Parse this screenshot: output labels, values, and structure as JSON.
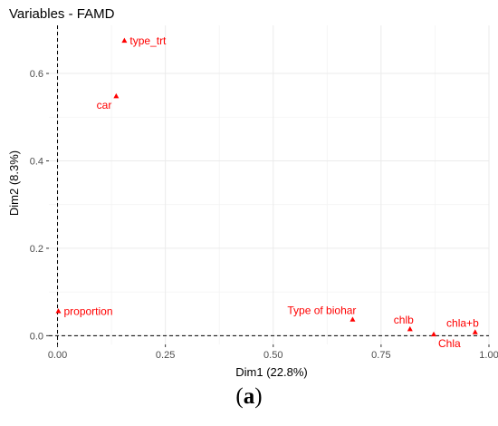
{
  "chart_data": {
    "type": "scatter",
    "title": "Variables - FAMD",
    "xlabel": "Dim1 (22.8%)",
    "ylabel": "Dim2 (8.3%)",
    "xlim": [
      -0.02,
      1.0
    ],
    "ylim": [
      -0.02,
      0.71
    ],
    "x_ticks": [
      0.0,
      0.25,
      0.5,
      0.75,
      1.0
    ],
    "x_tick_labels": [
      "0.00",
      "0.25",
      "0.50",
      "0.75",
      "1.00"
    ],
    "y_ticks": [
      0.0,
      0.2,
      0.4,
      0.6
    ],
    "y_tick_labels": [
      "0.0",
      "0.2",
      "0.4",
      "0.6"
    ],
    "reference_lines": {
      "x": 0,
      "y": 0
    },
    "grid": true,
    "marker_color": "#ff0000",
    "points": [
      {
        "label": "type_trt",
        "x": 0.155,
        "y": 0.675,
        "label_pos": "right"
      },
      {
        "label": "car",
        "x": 0.136,
        "y": 0.548,
        "label_pos": "below-left"
      },
      {
        "label": "proportion",
        "x": 0.002,
        "y": 0.056,
        "label_pos": "right"
      },
      {
        "label": "Type of biohar",
        "x": 0.684,
        "y": 0.037,
        "label_pos": "above-left"
      },
      {
        "label": "chlb",
        "x": 0.817,
        "y": 0.015,
        "label_pos": "above-left"
      },
      {
        "label": "Chla",
        "x": 0.872,
        "y": 0.003,
        "label_pos": "below-right"
      },
      {
        "label": "chla+b",
        "x": 0.968,
        "y": 0.008,
        "label_pos": "above-left"
      }
    ]
  },
  "caption": {
    "open": "(",
    "letter": "a",
    "close": ")"
  }
}
